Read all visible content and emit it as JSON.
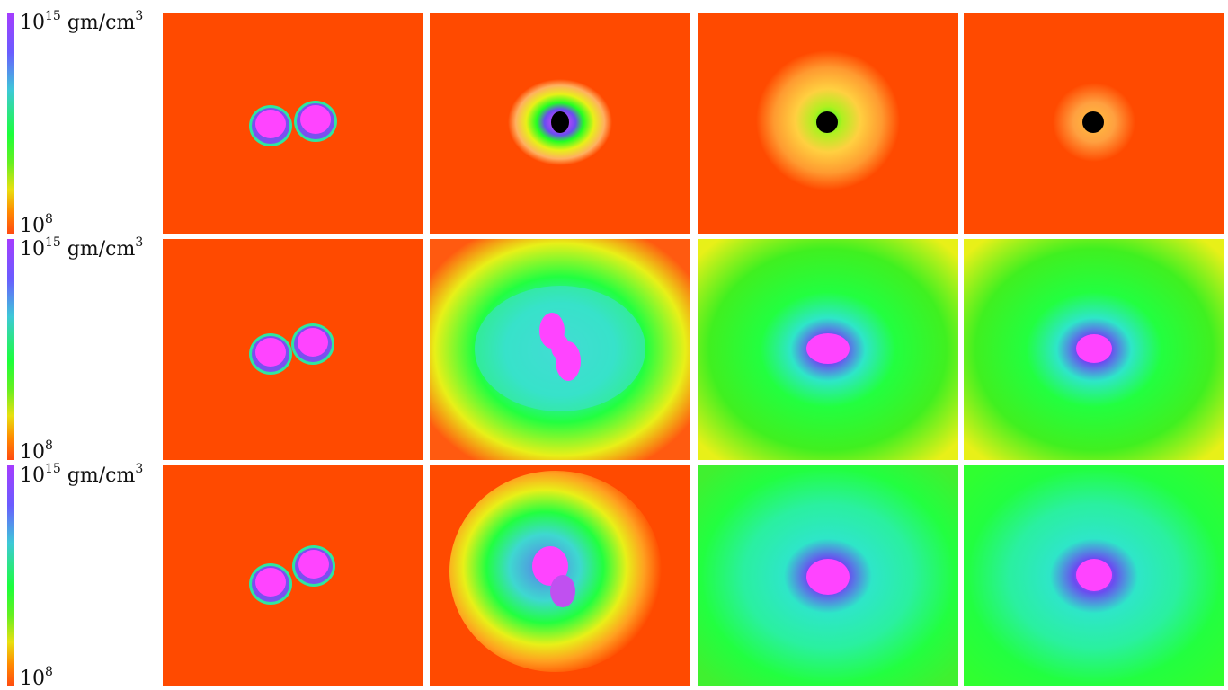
{
  "colorbar": {
    "top_base": "10",
    "top_exp": "15",
    "unit": "gm/cm",
    "unit_exp": "3",
    "bottom_base": "10",
    "bottom_exp": "8"
  },
  "palette": {
    "background_red": "#ff4a00",
    "magenta": "#ff44ff",
    "blue": "#6a4cf0",
    "cyan": "#2ee6c8",
    "green": "#22ff22",
    "yellow": "#e8f018",
    "orange": "#ff9a10",
    "black": "#000000"
  }
}
